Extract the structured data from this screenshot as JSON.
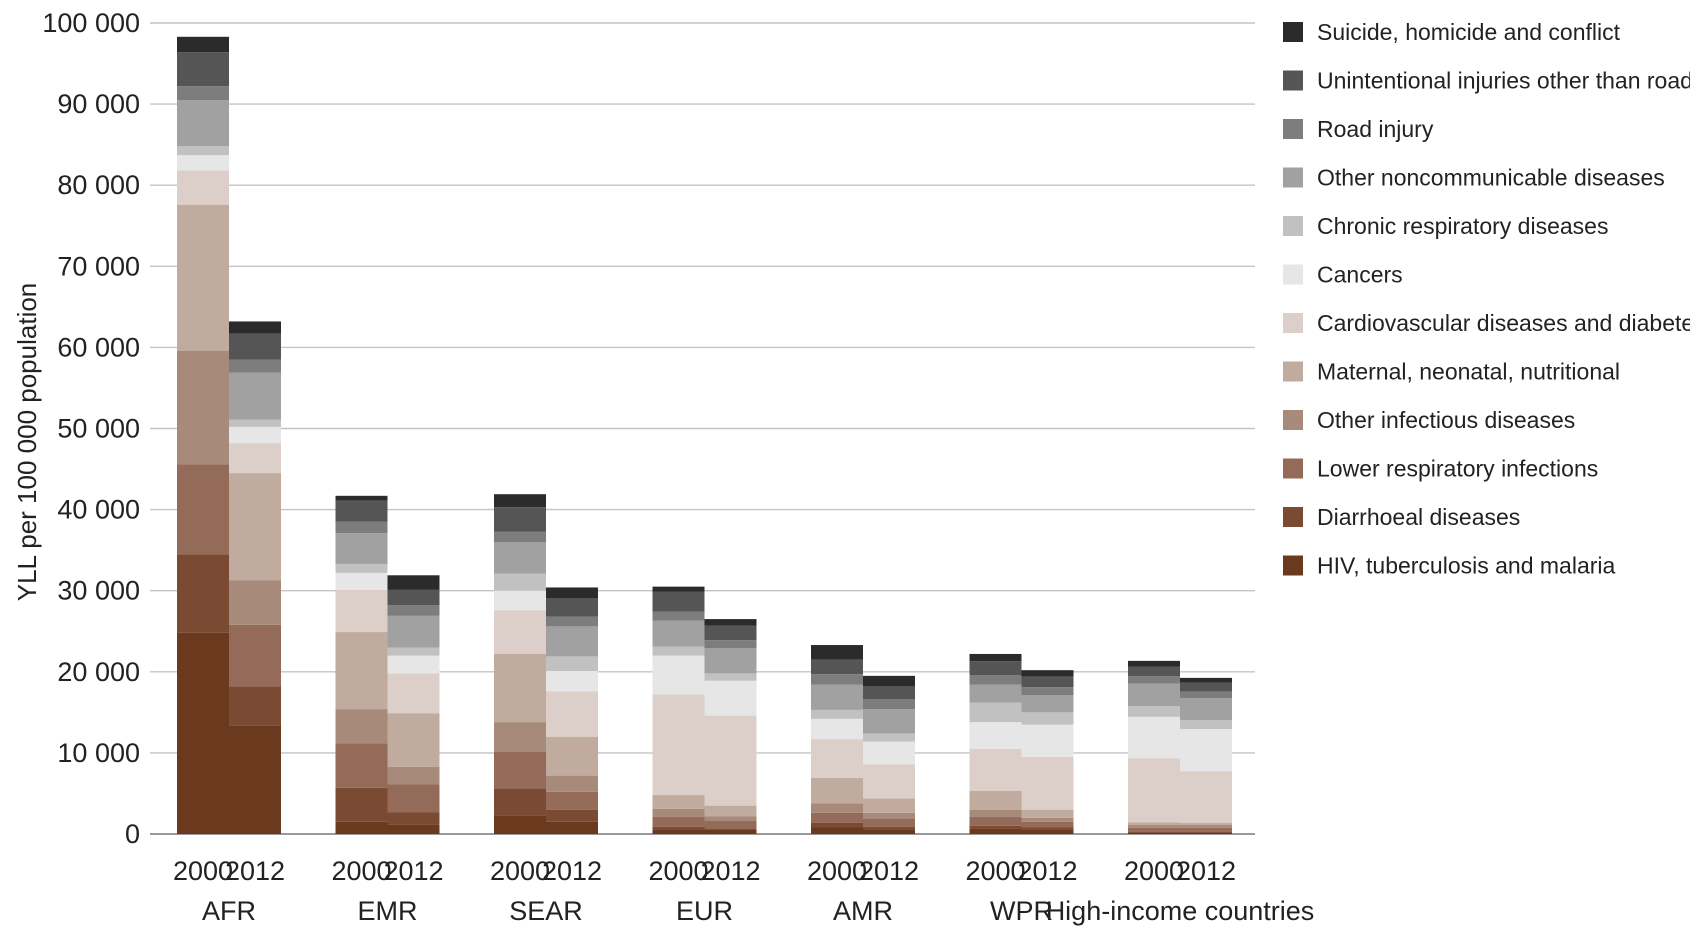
{
  "chart_data": {
    "type": "bar",
    "stacked": true,
    "ylabel": "YLL per 100 000 population",
    "ylim": [
      0,
      100000
    ],
    "yticks": [
      0,
      10000,
      20000,
      30000,
      40000,
      50000,
      60000,
      70000,
      80000,
      90000,
      100000
    ],
    "ytick_labels": [
      "0",
      "10 000",
      "20 000",
      "30 000",
      "40 000",
      "50 000",
      "60 000",
      "70 000",
      "80 000",
      "90 000",
      "100 000"
    ],
    "grid": true,
    "legend_position": "right",
    "groups": [
      "AFR",
      "EMR",
      "SEAR",
      "EUR",
      "AMR",
      "WPR",
      "High-income countries"
    ],
    "years": [
      "2000",
      "2012"
    ],
    "series": [
      {
        "name": "HIV, tuberculosis and malaria",
        "color": "#6b3a1e",
        "values": [
          24800,
          13400,
          1500,
          1200,
          2300,
          1500,
          600,
          500,
          800,
          600,
          700,
          600,
          200,
          200
        ]
      },
      {
        "name": "Diarrhoeal diseases",
        "color": "#7b4a32",
        "values": [
          9700,
          4800,
          4200,
          1500,
          3300,
          1500,
          300,
          200,
          600,
          300,
          300,
          200,
          50,
          50
        ]
      },
      {
        "name": "Lower respiratory infections",
        "color": "#946b58",
        "values": [
          11100,
          7600,
          5500,
          3400,
          4600,
          2200,
          1200,
          900,
          1200,
          1000,
          1100,
          700,
          500,
          500
        ]
      },
      {
        "name": "Other infectious diseases",
        "color": "#a88a7a",
        "values": [
          14000,
          5500,
          4200,
          2200,
          3600,
          2000,
          1000,
          600,
          1200,
          700,
          900,
          500,
          400,
          400
        ]
      },
      {
        "name": "Maternal, neonatal, nutritional",
        "color": "#c1aa9e",
        "values": [
          18000,
          13200,
          9500,
          6600,
          8400,
          4800,
          1700,
          1300,
          3100,
          1800,
          2300,
          1000,
          300,
          200
        ]
      },
      {
        "name": "Cardiovascular diseases and diabetes",
        "color": "#dccfc9",
        "values": [
          4200,
          3700,
          5200,
          4900,
          5400,
          5600,
          12400,
          11100,
          4800,
          4200,
          5200,
          6500,
          7900,
          6400
        ]
      },
      {
        "name": "Cancers",
        "color": "#e6e6e6",
        "values": [
          1900,
          2000,
          2100,
          2200,
          2400,
          2500,
          4800,
          4300,
          2500,
          2800,
          3300,
          4000,
          5100,
          5200
        ]
      },
      {
        "name": "Chronic respiratory diseases",
        "color": "#c1c1c1",
        "values": [
          1100,
          900,
          1100,
          1000,
          2100,
          1800,
          1100,
          900,
          1100,
          1000,
          2400,
          1500,
          1300,
          1100
        ]
      },
      {
        "name": "Other noncommunicable diseases",
        "color": "#a1a1a1",
        "values": [
          5700,
          5800,
          3800,
          3900,
          3900,
          3700,
          3200,
          3100,
          3100,
          3000,
          2200,
          2100,
          2800,
          2700
        ]
      },
      {
        "name": "Road injury",
        "color": "#7d7d7d",
        "values": [
          1700,
          1600,
          1400,
          1300,
          1300,
          1200,
          1100,
          1000,
          1300,
          1200,
          1200,
          1000,
          900,
          800
        ]
      },
      {
        "name": "Unintentional injuries other than road injury",
        "color": "#555555",
        "values": [
          4200,
          3200,
          2600,
          1900,
          3000,
          2300,
          2500,
          1800,
          1800,
          1600,
          1700,
          1300,
          1200,
          1100
        ]
      },
      {
        "name": "Suicide, homicide and conflict",
        "color": "#2b2b2b",
        "values": [
          1900,
          1500,
          600,
          1800,
          1600,
          1300,
          600,
          800,
          1800,
          1300,
          900,
          800,
          700,
          600
        ]
      }
    ]
  }
}
